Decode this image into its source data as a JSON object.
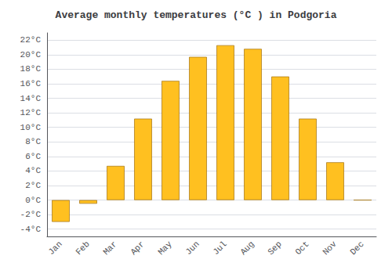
{
  "chart_data": {
    "type": "bar",
    "title": "Average monthly temperatures (°C ) in Podgoria",
    "categories": [
      "Jan",
      "Feb",
      "Mar",
      "Apr",
      "May",
      "Jun",
      "Jul",
      "Aug",
      "Sep",
      "Oct",
      "Nov",
      "Dec"
    ],
    "values": [
      -3.0,
      -0.5,
      4.7,
      11.2,
      16.4,
      19.7,
      21.3,
      20.8,
      17.0,
      11.2,
      5.2,
      0.0
    ],
    "color": "#FFC020",
    "ylim": [
      -5,
      23
    ],
    "yticks": [
      {
        "value": -4,
        "label": "-4°C"
      },
      {
        "value": -2,
        "label": "-2°C"
      },
      {
        "value": 0,
        "label": "0°C"
      },
      {
        "value": 2,
        "label": "2°C"
      },
      {
        "value": 4,
        "label": "4°C"
      },
      {
        "value": 6,
        "label": "6°C"
      },
      {
        "value": 8,
        "label": "8°C"
      },
      {
        "value": 10,
        "label": "10°C"
      },
      {
        "value": 12,
        "label": "12°C"
      },
      {
        "value": 14,
        "label": "14°C"
      },
      {
        "value": 16,
        "label": "16°C"
      },
      {
        "value": 18,
        "label": "18°C"
      },
      {
        "value": 20,
        "label": "20°C"
      },
      {
        "value": 22,
        "label": "22°C"
      }
    ],
    "grid": true
  }
}
